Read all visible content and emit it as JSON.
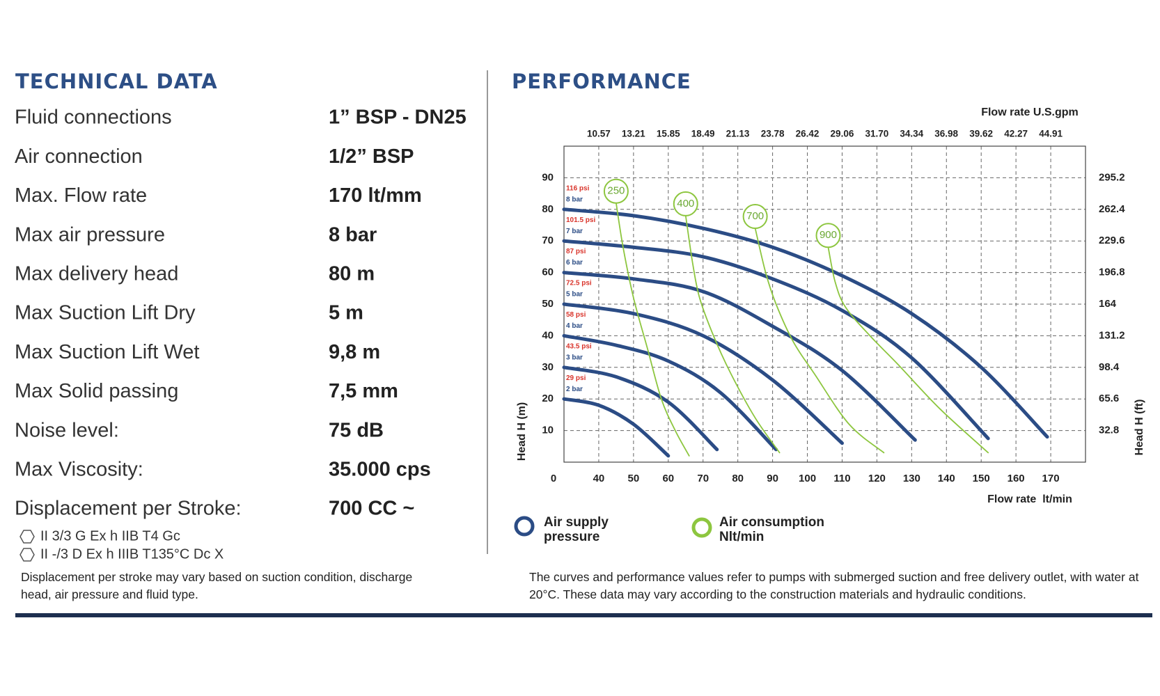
{
  "technical_data": {
    "title": "TECHNICAL DATA",
    "rows": [
      [
        "Fluid connections",
        "1” BSP - DN25"
      ],
      [
        "Air connection",
        "1/2” BSP"
      ],
      [
        "Max. Flow rate",
        "170 lt/mm"
      ],
      [
        "Max air pressure",
        "8 bar"
      ],
      [
        "Max delivery head",
        "80 m"
      ],
      [
        "Max Suction Lift Dry",
        "5 m"
      ],
      [
        "Max Suction Lift Wet",
        "9,8 m"
      ],
      [
        "Max Solid passing",
        "7,5 mm"
      ],
      [
        "Noise level:",
        "75 dB"
      ],
      [
        "Max Viscosity:",
        "35.000 cps"
      ],
      [
        "Displacement per Stroke:",
        "700 CC ~"
      ]
    ],
    "certifications": [
      "II 3/3 G Ex h IIB T4 Gc",
      "II -/3 D Ex h IIIB T135°C Dc X"
    ],
    "note": "Displacement per stroke may vary based on suction condition, discharge head, air pressure and fluid type."
  },
  "chart_data": {
    "type": "line",
    "title": "PERFORMANCE",
    "x_label": "Flow rate  lt/min",
    "x2_label": "Flow rate U.S.gpm",
    "y_label": "Head H (m)",
    "y2_label": "Head H (ft)",
    "xlim": [
      30,
      180
    ],
    "xticks": [
      {
        "value": 30,
        "label": "0"
      },
      40,
      50,
      60,
      70,
      80,
      90,
      100,
      110,
      120,
      130,
      140,
      150,
      160,
      170
    ],
    "x2lim": [
      7.93,
      47.55
    ],
    "x2ticks": [
      10.57,
      13.21,
      15.85,
      18.49,
      21.13,
      23.78,
      26.42,
      29.06,
      {
        "value": 31.7,
        "label": "31.70"
      },
      34.34,
      36.98,
      39.62,
      42.27,
      44.91
    ],
    "ylim": [
      0,
      100
    ],
    "yticks": [
      10,
      20,
      30,
      40,
      50,
      60,
      70,
      80,
      90
    ],
    "y2lim": [
      0,
      328
    ],
    "y2ticks": [
      32.8,
      65.6,
      98.4,
      131.2,
      164,
      196.8,
      229.6,
      262.4,
      295.2
    ],
    "grid": true,
    "series_groups": [
      {
        "name": "Air supply pressure",
        "color": "#2b4c85",
        "series": [
          {
            "name": "8 bar",
            "label": "116 psi",
            "x": [
              30,
              50,
              70,
              90,
              110,
              130,
              150,
              169
            ],
            "values": [
              80,
              78,
              74,
              68,
              59,
              47,
              30,
              8
            ]
          },
          {
            "name": "7 bar",
            "label": "101.5 psi",
            "x": [
              30,
              50,
              70,
              90,
              110,
              130,
              152
            ],
            "values": [
              70,
              68,
              65,
              58,
              48,
              33,
              7.5
            ]
          },
          {
            "name": "6 bar",
            "label": "87 psi",
            "x": [
              30,
              50,
              70,
              90,
              110,
              131
            ],
            "values": [
              60,
              58,
              54,
              43,
              29,
              7
            ]
          },
          {
            "name": "5 bar",
            "label": "72.5 psi",
            "x": [
              30,
              50,
              70,
              90,
              110
            ],
            "values": [
              50,
              47,
              40,
              26,
              6
            ]
          },
          {
            "name": "4 bar",
            "label": "58 psi",
            "x": [
              30,
              45,
              60,
              75,
              91
            ],
            "values": [
              40,
              37,
              32,
              22,
              4
            ]
          },
          {
            "name": "3 bar",
            "label": "43.5 psi",
            "x": [
              30,
              45,
              60,
              74
            ],
            "values": [
              30,
              27,
              19,
              4
            ]
          },
          {
            "name": "2 bar",
            "label": "29 psi",
            "x": [
              30,
              40,
              50,
              60
            ],
            "values": [
              20,
              18,
              12,
              2
            ]
          }
        ]
      },
      {
        "name": "Air consumption Nlt/min",
        "color": "#8dc63f",
        "series": [
          {
            "name": "250",
            "x": [
              45,
              47,
              50,
              54,
              58,
              62,
              66
            ],
            "values": [
              82,
              68,
              52,
              36,
              20,
              10,
              2
            ]
          },
          {
            "name": "400",
            "x": [
              65,
              67,
              69,
              73,
              78,
              85,
              92
            ],
            "values": [
              78,
              63,
              52,
              40,
              28,
              14,
              3
            ]
          },
          {
            "name": "700",
            "x": [
              85,
              88,
              91,
              96,
              102,
              112,
              122
            ],
            "values": [
              74,
              60,
              50,
              38,
              28,
              12,
              3
            ]
          },
          {
            "name": "900",
            "x": [
              106,
              108,
              111,
              118,
              126,
              138,
              152
            ],
            "values": [
              68,
              57,
              49,
              40,
              31,
              17,
              3
            ]
          }
        ]
      }
    ],
    "note": "The curves and performance values refer to pumps with submerged suction and free delivery outlet, with water at 20°C. These data may vary according to the construction materials and hydraulic conditions."
  }
}
